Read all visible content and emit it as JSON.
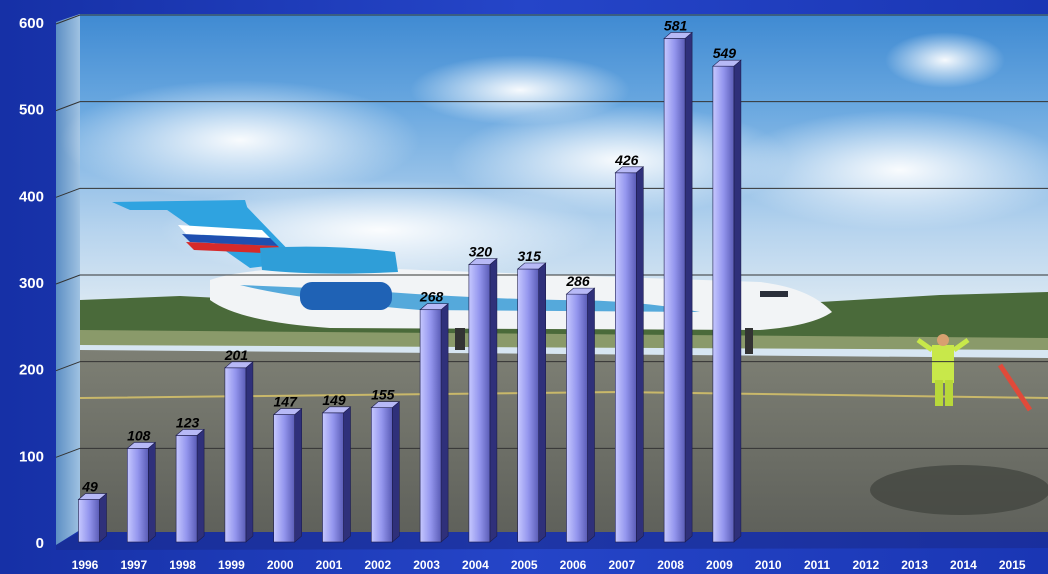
{
  "chart_data": {
    "type": "bar",
    "title": "",
    "xlabel": "",
    "ylabel": "",
    "categories": [
      "1996",
      "1997",
      "1998",
      "1999",
      "2000",
      "2001",
      "2002",
      "2003",
      "2004",
      "2005",
      "2006",
      "2007",
      "2008",
      "2009",
      "2010",
      "2011",
      "2012",
      "2013",
      "2014",
      "2015"
    ],
    "values": [
      49,
      108,
      123,
      201,
      147,
      149,
      155,
      268,
      320,
      315,
      286,
      426,
      581,
      549,
      null,
      null,
      null,
      null,
      null,
      null
    ],
    "ylim": [
      0,
      600
    ],
    "yticks": [
      0,
      100,
      200,
      300,
      400,
      500,
      600
    ],
    "grid": true,
    "legend": "none",
    "colors": {
      "bar_light": "#c6c8ff",
      "bar_mid": "#8f91ea",
      "bar_dark": "#4e50a8",
      "bar_top": "#b7b9f6",
      "bar_side": "#2f307a",
      "background": "#1f3fbf",
      "gridline": "#333333"
    }
  }
}
